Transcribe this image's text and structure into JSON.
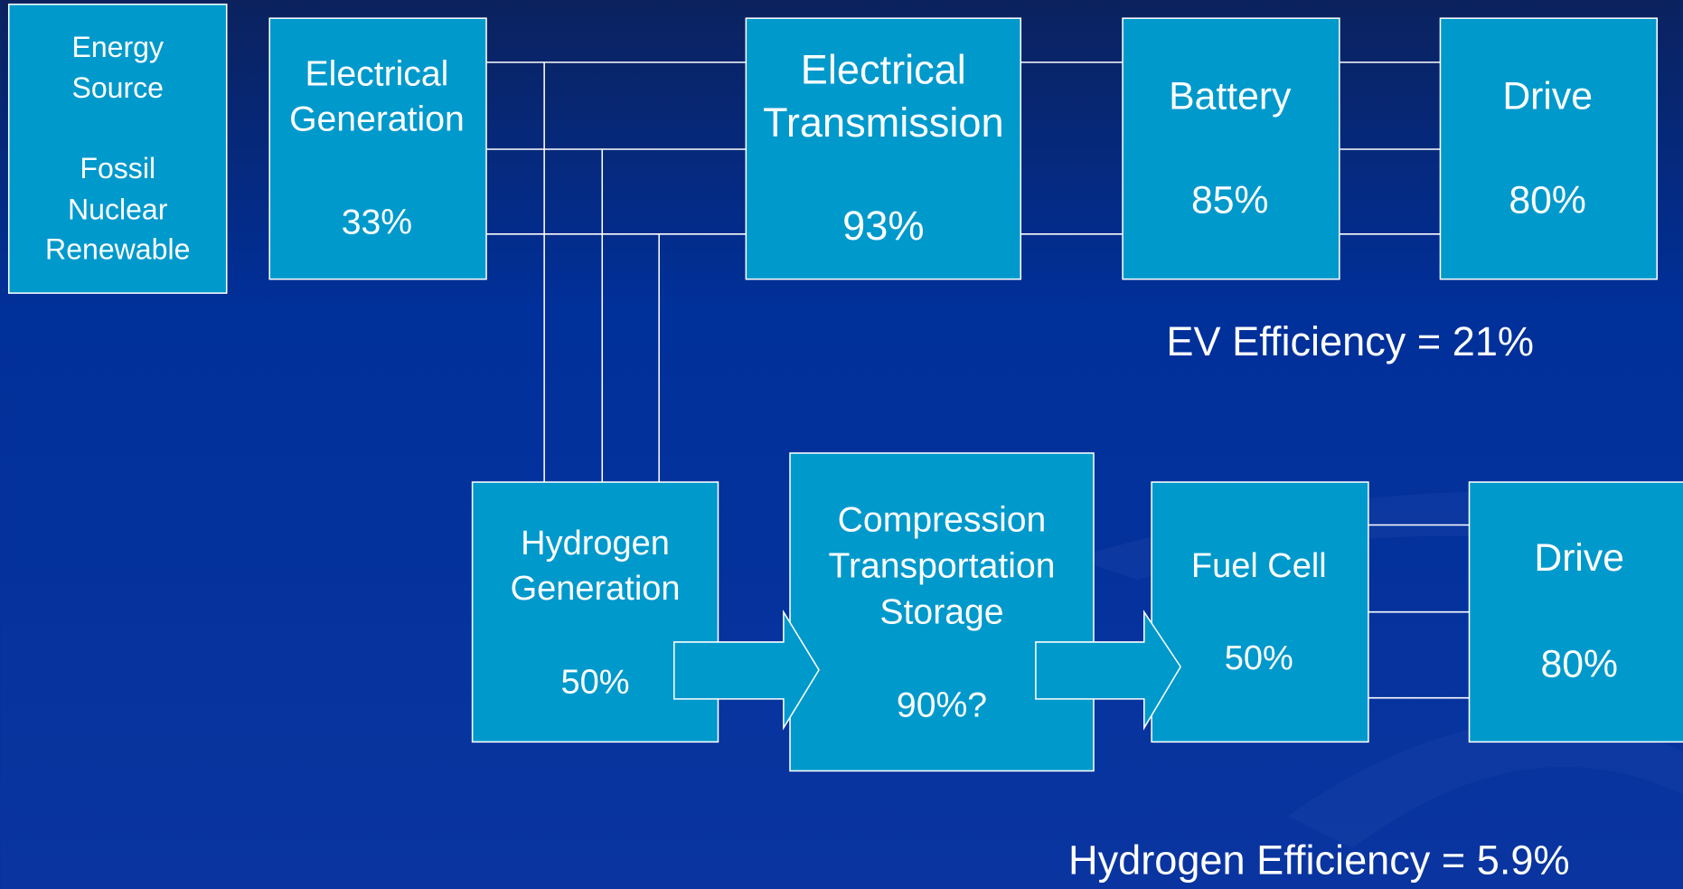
{
  "nodes": [
    {
      "lines": [
        "Energy",
        "Source",
        "Fossil",
        "Nuclear",
        "Renewable"
      ]
    },
    {
      "lines": [
        "Electrical",
        "Generation"
      ],
      "efficiency": "33%"
    },
    {
      "lines": [
        "Electrical",
        "Transmission"
      ],
      "efficiency": "93%"
    },
    {
      "lines": [
        "Battery"
      ],
      "efficiency": "85%"
    },
    {
      "lines": [
        "Drive"
      ],
      "efficiency": "80%"
    },
    {
      "lines": [
        "Hydrogen",
        "Generation"
      ],
      "efficiency": "50%"
    },
    {
      "lines": [
        "Compression",
        "Transportation",
        "Storage"
      ],
      "efficiency": "90%?"
    },
    {
      "lines": [
        "Fuel Cell"
      ],
      "efficiency": "50%"
    },
    {
      "lines": [
        "Drive"
      ],
      "efficiency": "80%"
    }
  ],
  "ev_efficiency": "EV Efficiency = 21%",
  "hydrogen_efficiency": "Hydrogen Efficiency = 5.9%"
}
